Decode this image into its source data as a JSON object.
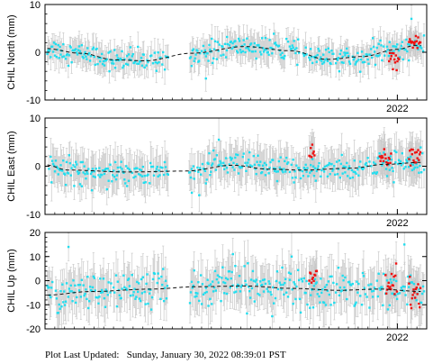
{
  "footer": {
    "label": "Plot Last Updated:",
    "value": "Sunday, January 30, 2022 08:39:01 PST"
  },
  "colors": {
    "points": "#22ddee",
    "flagged": "#ee1111",
    "errorbars": "#c8c8c8",
    "model": "#111111"
  },
  "chart_data": [
    {
      "type": "scatter",
      "ylabel": "CHIL North (mm)",
      "ylim": [
        -10,
        10
      ],
      "yticks": [
        -10,
        0,
        10
      ],
      "xlim": [
        2019.0,
        2022.25
      ],
      "xtick_label": "2022",
      "xtick_value": 2022.0,
      "grid": false,
      "data_gap": [
        2020.05,
        2020.22
      ],
      "model_knots": [
        [
          2019.0,
          0.8
        ],
        [
          2019.3,
          -0.2
        ],
        [
          2019.6,
          -1.6
        ],
        [
          2019.85,
          -1.8
        ],
        [
          2020.25,
          -0.2
        ],
        [
          2020.7,
          1.2
        ],
        [
          2021.1,
          0.3
        ],
        [
          2021.4,
          -1.5
        ],
        [
          2021.7,
          -0.9
        ],
        [
          2022.0,
          0.6
        ],
        [
          2022.15,
          1.4
        ]
      ],
      "scatter_sd": 1.1,
      "error_half": 2.5,
      "flagged_clusters": [
        {
          "x": [
            2021.93,
            2022.02
          ],
          "y": -1.5,
          "sd": 1.4
        },
        {
          "x": [
            2022.1,
            2022.2
          ],
          "y": 2.0,
          "sd": 0.6
        }
      ],
      "outliers": [
        [
          2020.37,
          -5.5
        ],
        [
          2022.12,
          7.0
        ],
        [
          2020.55,
          3.2
        ]
      ]
    },
    {
      "type": "scatter",
      "ylabel": "CHIL East (mm)",
      "ylim": [
        -10,
        10
      ],
      "yticks": [
        -10,
        0,
        10
      ],
      "xlim": [
        2019.0,
        2022.25
      ],
      "xtick_label": "2022",
      "xtick_value": 2022.0,
      "grid": false,
      "data_gap": [
        2020.05,
        2020.22
      ],
      "model_knots": [
        [
          2019.0,
          0.3
        ],
        [
          2019.2,
          -0.8
        ],
        [
          2019.7,
          -1.2
        ],
        [
          2020.2,
          -1.0
        ],
        [
          2020.6,
          0.2
        ],
        [
          2020.9,
          -0.6
        ],
        [
          2021.2,
          -0.8
        ],
        [
          2021.6,
          -0.4
        ],
        [
          2021.9,
          0.4
        ],
        [
          2022.2,
          0.8
        ]
      ],
      "scatter_sd": 1.3,
      "error_half": 3.5,
      "flagged_clusters": [
        {
          "x": [
            2021.85,
            2021.95
          ],
          "y": 1.8,
          "sd": 0.8
        },
        {
          "x": [
            2022.1,
            2022.2
          ],
          "y": 2.5,
          "sd": 0.9
        },
        {
          "x": [
            2021.25,
            2021.3
          ],
          "y": 3.0,
          "sd": 0.8
        }
      ],
      "outliers": [
        [
          2020.48,
          5.5
        ],
        [
          2020.25,
          -5.5
        ],
        [
          2019.4,
          -5.0
        ]
      ]
    },
    {
      "type": "scatter",
      "ylabel": "CHIL Up (mm)",
      "ylim": [
        -20,
        20
      ],
      "yticks": [
        -20,
        -10,
        0,
        10,
        20
      ],
      "xlim": [
        2019.0,
        2022.25
      ],
      "xtick_label": "2022",
      "xtick_value": 2022.0,
      "grid": false,
      "data_gap": [
        2020.05,
        2020.22
      ],
      "model_knots": [
        [
          2019.0,
          -6.0
        ],
        [
          2019.4,
          -4.5
        ],
        [
          2019.9,
          -3.5
        ],
        [
          2020.3,
          -2.5
        ],
        [
          2020.7,
          -2.2
        ],
        [
          2021.1,
          -3.2
        ],
        [
          2021.5,
          -4.0
        ],
        [
          2021.85,
          -3.5
        ],
        [
          2022.2,
          -4.5
        ]
      ],
      "scatter_sd": 3.8,
      "error_half": 8.0,
      "flagged_clusters": [
        {
          "x": [
            2021.25,
            2021.32
          ],
          "y": 1.0,
          "sd": 2.0
        },
        {
          "x": [
            2021.9,
            2022.0
          ],
          "y": -1.0,
          "sd": 3.5
        },
        {
          "x": [
            2022.1,
            2022.2
          ],
          "y": -5.0,
          "sd": 4.0
        }
      ],
      "outliers": [
        [
          2019.2,
          14.0
        ],
        [
          2022.06,
          15.0
        ],
        [
          2021.1,
          10.0
        ],
        [
          2020.6,
          11.0
        ]
      ]
    }
  ]
}
